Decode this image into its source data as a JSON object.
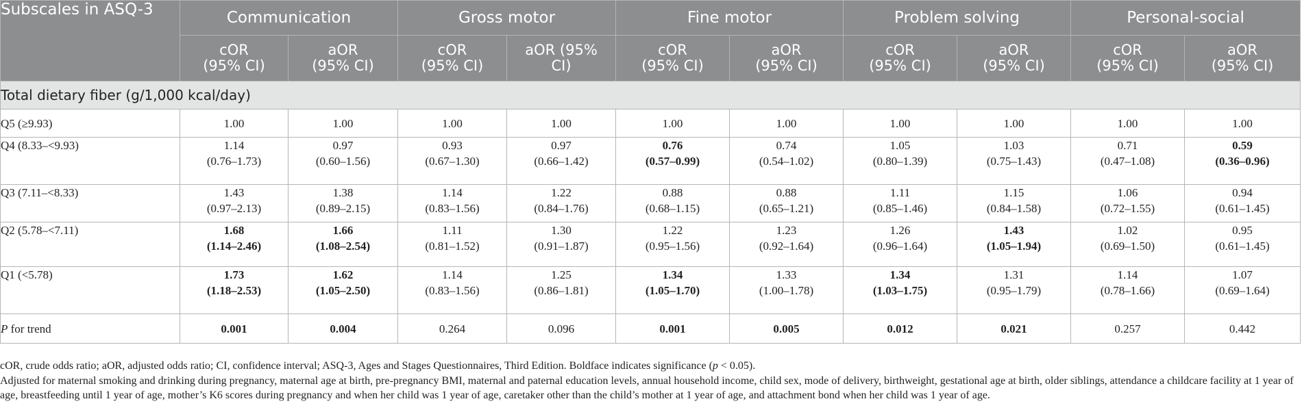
{
  "header": {
    "corner": "Subscales in ASQ-3",
    "groups": [
      "Communication",
      "Gross motor",
      "Fine motor",
      "Problem solving",
      "Personal-social"
    ],
    "sub": {
      "cor_1": "cOR",
      "cor_2": "(95% CI)",
      "aor_1": "aOR",
      "aor_2": "(95% CI)",
      "aor_gm_1": "aOR (95%",
      "aor_gm_2": "CI)"
    }
  },
  "section_title": "Total dietary fiber (g/1,000 kcal/day)",
  "rows": [
    {
      "label": "Q5 (≥9.93)",
      "cells": [
        {
          "v": "1.00",
          "ci": "",
          "bold": false
        },
        {
          "v": "1.00",
          "ci": "",
          "bold": false
        },
        {
          "v": "1.00",
          "ci": "",
          "bold": false
        },
        {
          "v": "1.00",
          "ci": "",
          "bold": false
        },
        {
          "v": "1.00",
          "ci": "",
          "bold": false
        },
        {
          "v": "1.00",
          "ci": "",
          "bold": false
        },
        {
          "v": "1.00",
          "ci": "",
          "bold": false
        },
        {
          "v": "1.00",
          "ci": "",
          "bold": false
        },
        {
          "v": "1.00",
          "ci": "",
          "bold": false
        },
        {
          "v": "1.00",
          "ci": "",
          "bold": false
        }
      ]
    },
    {
      "label": "Q4 (8.33–<9.93)",
      "cells": [
        {
          "v": "1.14",
          "ci": "(0.76–1.73)",
          "bold": false
        },
        {
          "v": "0.97",
          "ci": "(0.60–1.56)",
          "bold": false
        },
        {
          "v": "0.93",
          "ci": "(0.67–1.30)",
          "bold": false
        },
        {
          "v": "0.97",
          "ci": "(0.66–1.42)",
          "bold": false
        },
        {
          "v": "0.76",
          "ci": "(0.57–0.99)",
          "bold": true
        },
        {
          "v": "0.74",
          "ci": "(0.54–1.02)",
          "bold": false
        },
        {
          "v": "1.05",
          "ci": "(0.80–1.39)",
          "bold": false
        },
        {
          "v": "1.03",
          "ci": "(0.75–1.43)",
          "bold": false
        },
        {
          "v": "0.71",
          "ci": "(0.47–1.08)",
          "bold": false
        },
        {
          "v": "0.59",
          "ci": "(0.36–0.96)",
          "bold": true
        }
      ]
    },
    {
      "label": "Q3 (7.11–<8.33)",
      "cells": [
        {
          "v": "1.43",
          "ci": "(0.97–2.13)",
          "bold": false
        },
        {
          "v": "1.38",
          "ci": "(0.89–2.15)",
          "bold": false
        },
        {
          "v": "1.14",
          "ci": "(0.83–1.56)",
          "bold": false
        },
        {
          "v": "1.22",
          "ci": "(0.84–1.76)",
          "bold": false
        },
        {
          "v": "0.88",
          "ci": "(0.68–1.15)",
          "bold": false
        },
        {
          "v": "0.88",
          "ci": "(0.65–1.21)",
          "bold": false
        },
        {
          "v": "1.11",
          "ci": "(0.85–1.46)",
          "bold": false
        },
        {
          "v": "1.15",
          "ci": "(0.84–1.58)",
          "bold": false
        },
        {
          "v": "1.06",
          "ci": "(0.72–1.55)",
          "bold": false
        },
        {
          "v": "0.94",
          "ci": "(0.61–1.45)",
          "bold": false
        }
      ]
    },
    {
      "label": "Q2 (5.78–<7.11)",
      "cells": [
        {
          "v": "1.68",
          "ci": "(1.14–2.46)",
          "bold": true
        },
        {
          "v": "1.66",
          "ci": "(1.08–2.54)",
          "bold": true
        },
        {
          "v": "1.11",
          "ci": "(0.81–1.52)",
          "bold": false
        },
        {
          "v": "1.30",
          "ci": "(0.91–1.87)",
          "bold": false
        },
        {
          "v": "1.22",
          "ci": "(0.95–1.56)",
          "bold": false
        },
        {
          "v": "1.23",
          "ci": "(0.92–1.64)",
          "bold": false
        },
        {
          "v": "1.26",
          "ci": "(0.96–1.64)",
          "bold": false
        },
        {
          "v": "1.43",
          "ci": "(1.05–1.94)",
          "bold": true
        },
        {
          "v": "1.02",
          "ci": "(0.69–1.50)",
          "bold": false
        },
        {
          "v": "0.95",
          "ci": "(0.61–1.45)",
          "bold": false
        }
      ]
    },
    {
      "label": "Q1 (<5.78)",
      "cells": [
        {
          "v": "1.73",
          "ci": "(1.18–2.53)",
          "bold": true
        },
        {
          "v": "1.62",
          "ci": "(1.05–2.50)",
          "bold": true
        },
        {
          "v": "1.14",
          "ci": "(0.83–1.56)",
          "bold": false
        },
        {
          "v": "1.25",
          "ci": "(0.86–1.81)",
          "bold": false
        },
        {
          "v": "1.34",
          "ci": "(1.05–1.70)",
          "bold": true
        },
        {
          "v": "1.33",
          "ci": "(1.00–1.78)",
          "bold": false
        },
        {
          "v": "1.34",
          "ci": "(1.03–1.75)",
          "bold": true
        },
        {
          "v": "1.31",
          "ci": "(0.95–1.79)",
          "bold": false
        },
        {
          "v": "1.14",
          "ci": "(0.78–1.66)",
          "bold": false
        },
        {
          "v": "1.07",
          "ci": "(0.69–1.64)",
          "bold": false
        }
      ]
    },
    {
      "label_italic": "P",
      "label_rest": " for trend",
      "cells": [
        {
          "v": "0.001",
          "ci": "",
          "bold": true
        },
        {
          "v": "0.004",
          "ci": "",
          "bold": true
        },
        {
          "v": "0.264",
          "ci": "",
          "bold": false
        },
        {
          "v": "0.096",
          "ci": "",
          "bold": false
        },
        {
          "v": "0.001",
          "ci": "",
          "bold": true
        },
        {
          "v": "0.005",
          "ci": "",
          "bold": true
        },
        {
          "v": "0.012",
          "ci": "",
          "bold": true
        },
        {
          "v": "0.021",
          "ci": "",
          "bold": true
        },
        {
          "v": "0.257",
          "ci": "",
          "bold": false
        },
        {
          "v": "0.442",
          "ci": "",
          "bold": false
        }
      ]
    }
  ],
  "footnotes": {
    "line1_a": "cOR, crude odds ratio; aOR, adjusted odds ratio; CI, confidence interval; ASQ-3, Ages and Stages Questionnaires, Third Edition. Boldface indicates significance (",
    "line1_p": "p",
    "line1_b": " < 0.05).",
    "line2": "Adjusted for maternal smoking and drinking during pregnancy, maternal age at birth, pre-pregnancy BMI, maternal and paternal education levels, annual household income, child sex, mode of delivery, birthweight, gestational age at birth, older siblings, attendance a childcare facility at 1 year of age, breastfeeding until 1 year of age, mother’s K6 scores during pregnancy and when her child was 1 year of age, caretaker other than the child’s mother at 1 year of age, and attachment bond when her child was 1 year of age."
  }
}
